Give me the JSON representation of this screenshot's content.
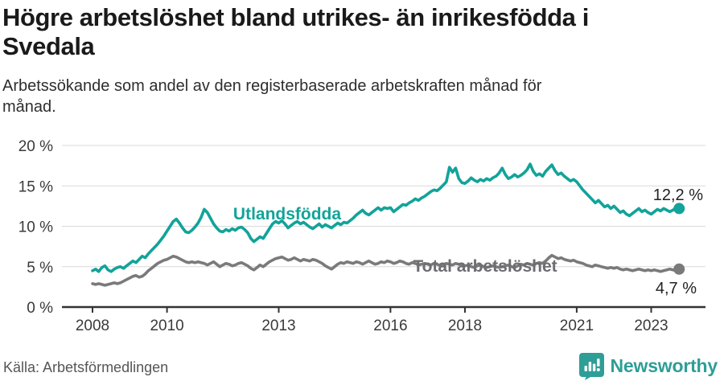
{
  "header": {
    "title_line1": "Högre arbetslöshet bland utrikes- än inrikesfödda i",
    "title_line2": "Svedala",
    "subtitle_line1": "Arbetssökande som andel av den registerbaserade arbetskraften månad för",
    "subtitle_line2": "månad."
  },
  "footer": {
    "source": "Källa: Arbetsförmedlingen",
    "brand": "Newsworthy"
  },
  "colors": {
    "teal": "#12a39a",
    "gray": "#7a7a7a",
    "gray_label": "#6d6d72",
    "axis": "#333333",
    "grid": "#d9d9d9",
    "brand_teal": "#2e9e97"
  },
  "chart_data": {
    "type": "line",
    "title": "Högre arbetslöshet bland utrikes- än inrikesfödda i Svedala",
    "subtitle": "Arbetssökande som andel av den registerbaserade arbetskraften månad för månad.",
    "xlabel": "",
    "ylabel": "",
    "unit": "%",
    "grid": true,
    "x_start_year": 2008,
    "x_step": "month",
    "x_range": [
      "2008-01",
      "2023-10"
    ],
    "x_ticks": [
      2008,
      2010,
      2013,
      2016,
      2018,
      2021,
      2023
    ],
    "y_ticks": [
      0,
      5,
      10,
      15,
      20
    ],
    "y_tick_suffix": " %",
    "ylim": [
      0,
      20
    ],
    "series": [
      {
        "name": "Utlandsfödda",
        "color": "#12a39a",
        "label_color": "#12a39a",
        "end_label": "12,2 %",
        "end_value": 12.2,
        "values": [
          4.5,
          4.7,
          4.4,
          4.9,
          5.1,
          4.6,
          4.4,
          4.7,
          4.9,
          5.0,
          4.8,
          5.1,
          5.4,
          5.7,
          5.5,
          5.9,
          6.3,
          6.1,
          6.6,
          7.0,
          7.4,
          7.8,
          8.3,
          8.8,
          9.4,
          10.0,
          10.6,
          10.9,
          10.4,
          9.8,
          9.3,
          9.2,
          9.5,
          9.9,
          10.4,
          11.1,
          12.1,
          11.7,
          11.0,
          10.3,
          9.8,
          9.4,
          9.3,
          9.6,
          9.4,
          9.7,
          9.5,
          9.8,
          9.9,
          9.6,
          9.2,
          8.5,
          8.1,
          8.4,
          8.7,
          8.5,
          9.1,
          9.7,
          10.3,
          10.6,
          10.4,
          10.7,
          10.3,
          9.8,
          10.1,
          10.4,
          10.6,
          10.3,
          10.5,
          10.2,
          9.9,
          9.7,
          10.0,
          10.3,
          9.9,
          10.2,
          10.0,
          9.8,
          10.1,
          10.4,
          10.2,
          10.5,
          10.4,
          10.7,
          11.0,
          11.4,
          11.7,
          12.0,
          11.6,
          11.4,
          11.7,
          12.0,
          12.3,
          12.0,
          12.3,
          12.2,
          12.3,
          11.8,
          12.1,
          12.4,
          12.7,
          12.6,
          12.9,
          13.1,
          13.4,
          13.2,
          13.5,
          13.7,
          14.0,
          14.3,
          14.5,
          14.4,
          14.7,
          15.1,
          15.5,
          17.3,
          16.7,
          17.2,
          15.9,
          15.4,
          15.3,
          15.6,
          16.0,
          15.7,
          15.5,
          15.8,
          15.6,
          15.9,
          15.7,
          16.0,
          16.2,
          16.6,
          17.2,
          16.4,
          15.9,
          16.1,
          16.4,
          16.1,
          16.3,
          16.6,
          17.0,
          17.7,
          16.8,
          16.3,
          16.5,
          16.2,
          16.8,
          17.2,
          17.6,
          16.9,
          16.4,
          16.6,
          16.2,
          15.9,
          15.6,
          15.8,
          15.5,
          15.0,
          14.5,
          14.1,
          13.7,
          13.3,
          12.9,
          13.2,
          12.8,
          12.4,
          12.6,
          12.2,
          12.5,
          12.1,
          11.7,
          11.9,
          11.5,
          11.3,
          11.6,
          11.9,
          12.2,
          11.8,
          12.0,
          11.7,
          11.5,
          11.8,
          12.1,
          11.9,
          12.2,
          12.0,
          11.8,
          12.0,
          12.3,
          12.2
        ]
      },
      {
        "name": "Total arbetslöshet",
        "color": "#7a7a7a",
        "label_color": "#6d6d72",
        "end_label": "4,7 %",
        "end_value": 4.7,
        "values": [
          2.9,
          2.8,
          2.9,
          2.8,
          2.7,
          2.8,
          2.9,
          3.0,
          2.9,
          3.0,
          3.2,
          3.4,
          3.6,
          3.8,
          3.9,
          3.7,
          3.8,
          4.1,
          4.5,
          4.8,
          5.1,
          5.4,
          5.6,
          5.8,
          5.9,
          6.1,
          6.3,
          6.2,
          6.0,
          5.8,
          5.6,
          5.5,
          5.6,
          5.5,
          5.6,
          5.5,
          5.4,
          5.2,
          5.4,
          5.6,
          5.3,
          5.0,
          5.2,
          5.4,
          5.3,
          5.1,
          5.2,
          5.4,
          5.5,
          5.3,
          5.1,
          4.8,
          4.6,
          4.9,
          5.2,
          5.0,
          5.3,
          5.6,
          5.8,
          6.0,
          6.1,
          6.2,
          6.0,
          5.8,
          5.9,
          6.1,
          5.9,
          5.7,
          5.9,
          5.8,
          5.7,
          5.9,
          5.8,
          5.6,
          5.4,
          5.1,
          4.9,
          4.7,
          5.0,
          5.3,
          5.5,
          5.4,
          5.6,
          5.5,
          5.4,
          5.6,
          5.5,
          5.3,
          5.5,
          5.7,
          5.5,
          5.3,
          5.4,
          5.6,
          5.5,
          5.7,
          5.6,
          5.4,
          5.5,
          5.7,
          5.6,
          5.4,
          5.3,
          5.5,
          5.4,
          5.2,
          5.3,
          5.4,
          5.3,
          5.2,
          5.4,
          5.3,
          5.1,
          5.2,
          5.4,
          5.3,
          5.2,
          5.4,
          5.3,
          5.2,
          5.1,
          5.2,
          5.0,
          4.9,
          5.1,
          5.2,
          5.0,
          4.9,
          5.0,
          5.1,
          5.0,
          4.9,
          5.0,
          5.1,
          5.2,
          5.0,
          4.9,
          5.1,
          5.3,
          5.2,
          5.4,
          5.3,
          5.2,
          5.4,
          5.5,
          5.4,
          5.7,
          6.1,
          6.4,
          6.2,
          6.0,
          6.1,
          5.9,
          5.8,
          5.7,
          5.8,
          5.6,
          5.5,
          5.4,
          5.2,
          5.1,
          5.0,
          5.2,
          5.1,
          5.0,
          4.9,
          4.8,
          4.9,
          4.8,
          4.9,
          4.7,
          4.6,
          4.7,
          4.6,
          4.5,
          4.6,
          4.7,
          4.6,
          4.5,
          4.6,
          4.5,
          4.6,
          4.5,
          4.4,
          4.5,
          4.6,
          4.7,
          4.6,
          4.5,
          4.7
        ]
      }
    ],
    "legend_position": "inline-labels"
  }
}
